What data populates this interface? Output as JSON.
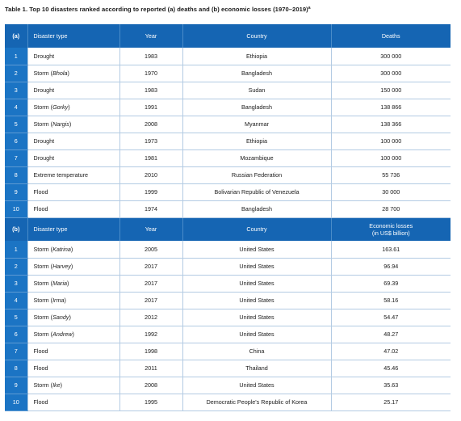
{
  "title": "Table 1. Top 10 disasters ranked according to reported (a) deaths and (b) economic losses (1970–2019)",
  "title_footnote": "a",
  "section_a": {
    "label": "(a)",
    "headers": {
      "type": "Disaster type",
      "year": "Year",
      "country": "Country",
      "value": "Deaths"
    },
    "rows": [
      {
        "rank": "1",
        "type": "Drought",
        "name": "",
        "year": "1983",
        "country": "Ethiopia",
        "value": "300 000"
      },
      {
        "rank": "2",
        "type": "Storm (",
        "name": "Bhola",
        "year": "1970",
        "country": "Bangladesh",
        "value": "300 000"
      },
      {
        "rank": "3",
        "type": "Drought",
        "name": "",
        "year": "1983",
        "country": "Sudan",
        "value": "150 000"
      },
      {
        "rank": "4",
        "type": "Storm (",
        "name": "Gorky",
        "year": "1991",
        "country": "Bangladesh",
        "value": "138 866"
      },
      {
        "rank": "5",
        "type": "Storm (",
        "name": "Nargis",
        "year": "2008",
        "country": "Myanmar",
        "value": "138 366"
      },
      {
        "rank": "6",
        "type": "Drought",
        "name": "",
        "year": "1973",
        "country": "Ethiopia",
        "value": "100 000"
      },
      {
        "rank": "7",
        "type": "Drought",
        "name": "",
        "year": "1981",
        "country": "Mozambique",
        "value": "100 000"
      },
      {
        "rank": "8",
        "type": "Extreme temperature",
        "name": "",
        "year": "2010",
        "country": "Russian Federation",
        "value": "55 736"
      },
      {
        "rank": "9",
        "type": "Flood",
        "name": "",
        "year": "1999",
        "country": "Bolivarian Republic of Venezuela",
        "value": "30 000"
      },
      {
        "rank": "10",
        "type": "Flood",
        "name": "",
        "year": "1974",
        "country": "Bangladesh",
        "value": "28 700"
      }
    ]
  },
  "section_b": {
    "label": "(b)",
    "headers": {
      "type": "Disaster type",
      "year": "Year",
      "country": "Country",
      "value_line1": "Economic losses",
      "value_line2": "(in US$ billion)"
    },
    "rows": [
      {
        "rank": "1",
        "type": "Storm (",
        "name": "Katrina",
        "year": "2005",
        "country": "United States",
        "value": "163.61"
      },
      {
        "rank": "2",
        "type": "Storm (",
        "name": "Harvey",
        "year": "2017",
        "country": "United States",
        "value": "96.94"
      },
      {
        "rank": "3",
        "type": "Storm (",
        "name": "Maria",
        "year": "2017",
        "country": "United States",
        "value": "69.39"
      },
      {
        "rank": "4",
        "type": "Storm (",
        "name": "Irma",
        "year": "2017",
        "country": "United States",
        "value": "58.16"
      },
      {
        "rank": "5",
        "type": "Storm (",
        "name": "Sandy",
        "year": "2012",
        "country": "United States",
        "value": "54.47"
      },
      {
        "rank": "6",
        "type": "Storm (",
        "name": "Andrew",
        "year": "1992",
        "country": "United States",
        "value": "48.27"
      },
      {
        "rank": "7",
        "type": "Flood",
        "name": "",
        "year": "1998",
        "country": "China",
        "value": "47.02"
      },
      {
        "rank": "8",
        "type": "Flood",
        "name": "",
        "year": "2011",
        "country": "Thailand",
        "value": "45.46"
      },
      {
        "rank": "9",
        "type": "Storm (",
        "name": "Ike",
        "year": "2008",
        "country": "United States",
        "value": "35.63"
      },
      {
        "rank": "10",
        "type": "Flood",
        "name": "",
        "year": "1995",
        "country": "Democratic People's Republic of Korea",
        "value": "25.17"
      }
    ]
  },
  "colors": {
    "header_blue": "#1565b3",
    "rank_blue": "#1b74c4",
    "grid_line": "#b3cbe3"
  }
}
